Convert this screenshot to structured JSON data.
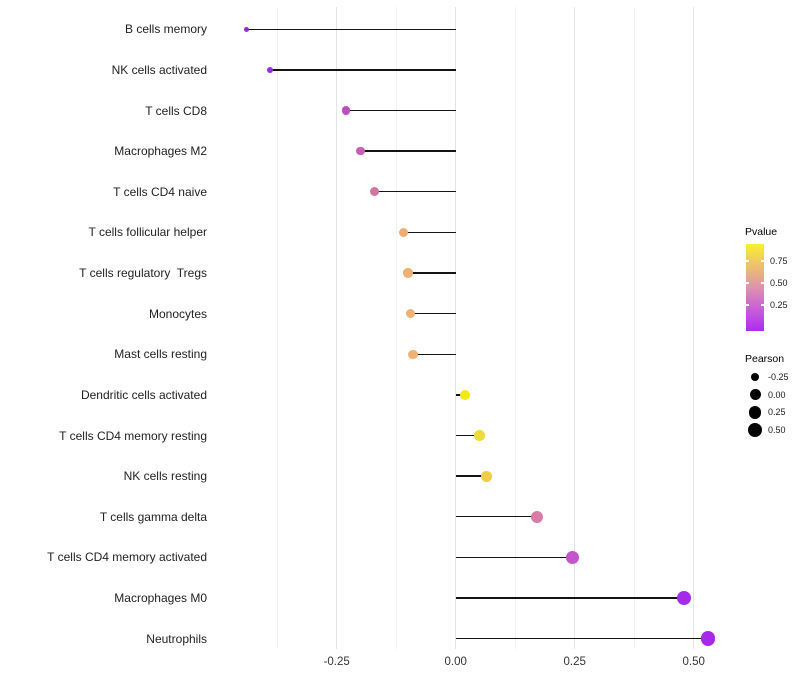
{
  "chart_data": {
    "type": "scatter",
    "variant": "lollipop",
    "title": "",
    "xlabel": "",
    "ylabel": "",
    "x_axis": {
      "ticks": [
        {
          "value": -0.25,
          "label": "-0.25"
        },
        {
          "value": 0.0,
          "label": "0.00"
        },
        {
          "value": 0.25,
          "label": "0.25"
        },
        {
          "value": 0.5,
          "label": "0.50"
        }
      ],
      "minor_ticks": [
        -0.375,
        -0.125,
        0.125,
        0.375
      ],
      "range": [
        -0.49,
        0.58
      ],
      "baseline": 0
    },
    "points": [
      {
        "category": "B cells memory",
        "pearson": -0.44,
        "color": "#9128e0",
        "radius_px": 2.6
      },
      {
        "category": "NK cells activated",
        "pearson": -0.39,
        "color": "#9a2ce1",
        "radius_px": 3.2
      },
      {
        "category": "T cells CD8",
        "pearson": -0.23,
        "color": "#bb4fc0",
        "radius_px": 4.1
      },
      {
        "category": "Macrophages M2",
        "pearson": -0.2,
        "color": "#c75fb2",
        "radius_px": 4.3
      },
      {
        "category": "T cells CD4 naive",
        "pearson": -0.17,
        "color": "#d2759e",
        "radius_px": 4.5
      },
      {
        "category": "T cells follicular helper",
        "pearson": -0.11,
        "color": "#efad72",
        "radius_px": 4.6
      },
      {
        "category": "T cells regulatory  Tregs",
        "pearson": -0.1,
        "color": "#f0b071",
        "radius_px": 4.7
      },
      {
        "category": "Monocytes",
        "pearson": -0.095,
        "color": "#f0b173",
        "radius_px": 4.7
      },
      {
        "category": "Mast cells resting",
        "pearson": -0.09,
        "color": "#f0b273",
        "radius_px": 4.7
      },
      {
        "category": "Dendritic cells activated",
        "pearson": 0.02,
        "color": "#f2e90f",
        "radius_px": 5.2
      },
      {
        "category": "T cells CD4 memory resting",
        "pearson": 0.05,
        "color": "#f0da38",
        "radius_px": 5.4
      },
      {
        "category": "NK cells resting",
        "pearson": 0.065,
        "color": "#f0cd46",
        "radius_px": 5.6
      },
      {
        "category": "T cells gamma delta",
        "pearson": 0.17,
        "color": "#d77da5",
        "radius_px": 6.0
      },
      {
        "category": "T cells CD4 memory activated",
        "pearson": 0.245,
        "color": "#c654cd",
        "radius_px": 6.5
      },
      {
        "category": "Macrophages M0",
        "pearson": 0.48,
        "color": "#a32be9",
        "radius_px": 7.1
      },
      {
        "category": "Neutrophils",
        "pearson": 0.53,
        "color": "#a629ea",
        "radius_px": 7.4
      }
    ],
    "legends": {
      "pvalue": {
        "title": "Pvalue",
        "tick_labels": [
          "0.75",
          "0.50",
          "0.25"
        ],
        "gradient_stops": [
          "#ab2cf2",
          "#c95fd9",
          "#de92ad",
          "#eec06e",
          "#f9ef33"
        ]
      },
      "pearson": {
        "title": "Pearson",
        "entries": [
          {
            "label": "-0.25",
            "radius_px": 4.3
          },
          {
            "label": "0.00",
            "radius_px": 5.5
          },
          {
            "label": "0.25",
            "radius_px": 6.4
          },
          {
            "label": "0.50",
            "radius_px": 7.2
          }
        ]
      }
    },
    "style": {
      "stem_color": "#141414",
      "grid_major_color": "#e4e4e4",
      "grid_minor_color": "#f2f2f2",
      "axis_text_color": "#333333",
      "label_text_color": "#1f1f1f",
      "background": "#ffffff"
    }
  }
}
